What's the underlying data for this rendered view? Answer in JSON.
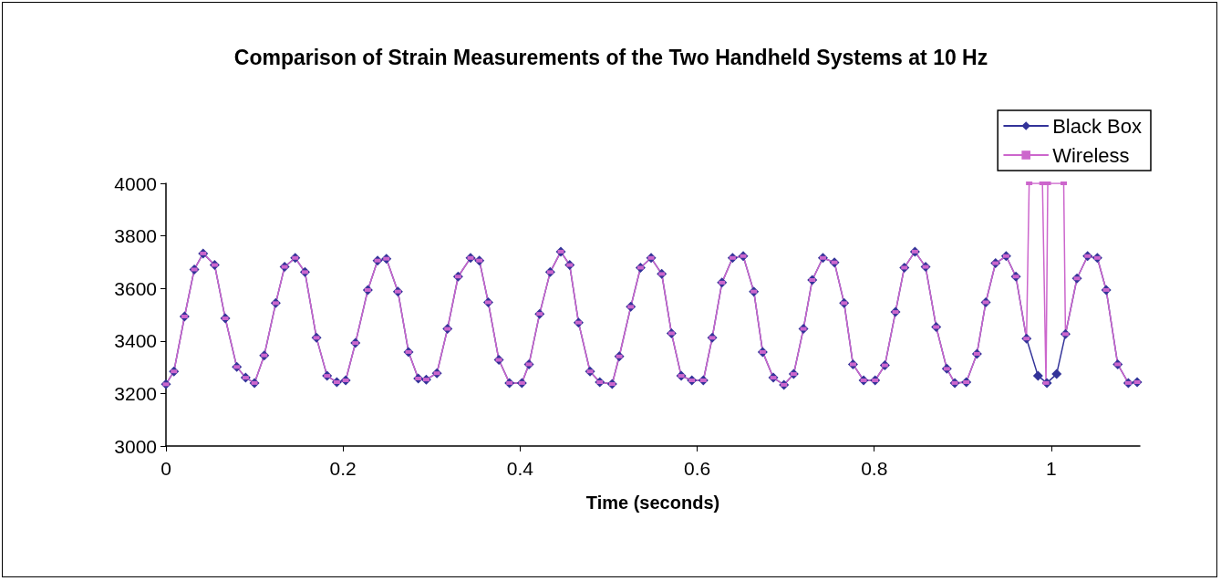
{
  "chart_data": {
    "type": "line",
    "title": "Comparison of Strain Measurements of the Two Handheld Systems at 10 Hz",
    "xlabel": "Time (seconds)",
    "xlim": [
      0,
      1.1
    ],
    "xticks": [
      0,
      0.2,
      0.4,
      0.6,
      0.8,
      1
    ],
    "ylim": [
      3000,
      4000
    ],
    "yticks": [
      3000,
      3200,
      3400,
      3600,
      3800,
      4000
    ],
    "grid": false,
    "legend": "top right",
    "line_style": "solid",
    "series": [
      {
        "name": "Black Box",
        "color": "#333399",
        "marker": "diamond",
        "x": [
          0,
          0.009,
          0.021,
          0.032,
          0.042,
          0.055,
          0.067,
          0.08,
          0.09,
          0.1,
          0.111,
          0.124,
          0.134,
          0.146,
          0.157,
          0.17,
          0.182,
          0.193,
          0.203,
          0.214,
          0.228,
          0.239,
          0.249,
          0.262,
          0.274,
          0.285,
          0.294,
          0.306,
          0.318,
          0.33,
          0.344,
          0.354,
          0.364,
          0.376,
          0.388,
          0.402,
          0.41,
          0.422,
          0.434,
          0.446,
          0.456,
          0.466,
          0.479,
          0.49,
          0.504,
          0.512,
          0.525,
          0.536,
          0.548,
          0.56,
          0.571,
          0.582,
          0.594,
          0.607,
          0.617,
          0.628,
          0.64,
          0.652,
          0.664,
          0.674,
          0.686,
          0.698,
          0.709,
          0.72,
          0.73,
          0.742,
          0.755,
          0.766,
          0.776,
          0.788,
          0.801,
          0.812,
          0.824,
          0.834,
          0.846,
          0.858,
          0.87,
          0.882,
          0.891,
          0.904,
          0.916,
          0.926,
          0.937,
          0.949,
          0.96,
          0.972,
          0.985,
          0.995,
          1.006,
          1.016,
          1.029,
          1.041,
          1.052,
          1.062,
          1.075,
          1.087,
          1.097
        ],
        "values": [
          3235,
          3284,
          3493,
          3672,
          3733,
          3689,
          3486,
          3301,
          3260,
          3240,
          3345,
          3544,
          3682,
          3716,
          3662,
          3412,
          3267,
          3243,
          3250,
          3392,
          3594,
          3706,
          3713,
          3588,
          3358,
          3257,
          3253,
          3277,
          3446,
          3645,
          3716,
          3706,
          3547,
          3328,
          3240,
          3240,
          3311,
          3503,
          3662,
          3740,
          3689,
          3470,
          3284,
          3243,
          3236,
          3341,
          3530,
          3679,
          3716,
          3655,
          3429,
          3267,
          3250,
          3250,
          3412,
          3622,
          3716,
          3723,
          3588,
          3358,
          3260,
          3233,
          3274,
          3446,
          3632,
          3716,
          3699,
          3544,
          3311,
          3250,
          3250,
          3307,
          3510,
          3679,
          3740,
          3682,
          3453,
          3294,
          3240,
          3243,
          3351,
          3547,
          3696,
          3723,
          3645,
          3409,
          3267,
          3240,
          3274,
          3426,
          3638,
          3723,
          3716,
          3594,
          3311,
          3240,
          3243
        ]
      },
      {
        "name": "Wireless",
        "color": "#cc66cc",
        "marker": "square",
        "x": [
          0,
          0.009,
          0.021,
          0.032,
          0.042,
          0.055,
          0.067,
          0.08,
          0.09,
          0.1,
          0.111,
          0.124,
          0.134,
          0.146,
          0.157,
          0.17,
          0.182,
          0.193,
          0.203,
          0.214,
          0.228,
          0.239,
          0.249,
          0.262,
          0.274,
          0.285,
          0.294,
          0.306,
          0.318,
          0.33,
          0.344,
          0.354,
          0.364,
          0.376,
          0.388,
          0.402,
          0.41,
          0.422,
          0.434,
          0.446,
          0.456,
          0.466,
          0.479,
          0.49,
          0.504,
          0.512,
          0.525,
          0.536,
          0.548,
          0.56,
          0.571,
          0.582,
          0.594,
          0.607,
          0.617,
          0.628,
          0.64,
          0.652,
          0.664,
          0.674,
          0.686,
          0.698,
          0.709,
          0.72,
          0.73,
          0.742,
          0.755,
          0.766,
          0.776,
          0.788,
          0.801,
          0.812,
          0.824,
          0.834,
          0.846,
          0.858,
          0.87,
          0.882,
          0.891,
          0.904,
          0.916,
          0.926,
          0.937,
          0.949,
          0.96,
          0.972,
          0.975,
          0.99,
          0.994,
          0.996,
          1.014,
          1.016,
          1.029,
          1.041,
          1.052,
          1.062,
          1.075,
          1.087,
          1.097
        ],
        "values": [
          3235,
          3284,
          3493,
          3672,
          3733,
          3689,
          3486,
          3301,
          3260,
          3240,
          3345,
          3544,
          3682,
          3716,
          3662,
          3412,
          3267,
          3243,
          3250,
          3392,
          3594,
          3706,
          3713,
          3588,
          3358,
          3257,
          3253,
          3277,
          3446,
          3645,
          3716,
          3706,
          3547,
          3328,
          3240,
          3240,
          3311,
          3503,
          3662,
          3740,
          3689,
          3470,
          3284,
          3243,
          3236,
          3341,
          3530,
          3679,
          3716,
          3655,
          3429,
          3267,
          3250,
          3250,
          3412,
          3622,
          3716,
          3723,
          3588,
          3358,
          3260,
          3233,
          3274,
          3446,
          3632,
          3716,
          3699,
          3544,
          3311,
          3250,
          3250,
          3307,
          3510,
          3679,
          3740,
          3682,
          3453,
          3294,
          3240,
          3243,
          3351,
          3547,
          3696,
          3723,
          3645,
          3409,
          4000,
          4000,
          3240,
          4000,
          4000,
          3426,
          3638,
          3723,
          3716,
          3594,
          3311,
          3240,
          3243
        ]
      }
    ]
  }
}
